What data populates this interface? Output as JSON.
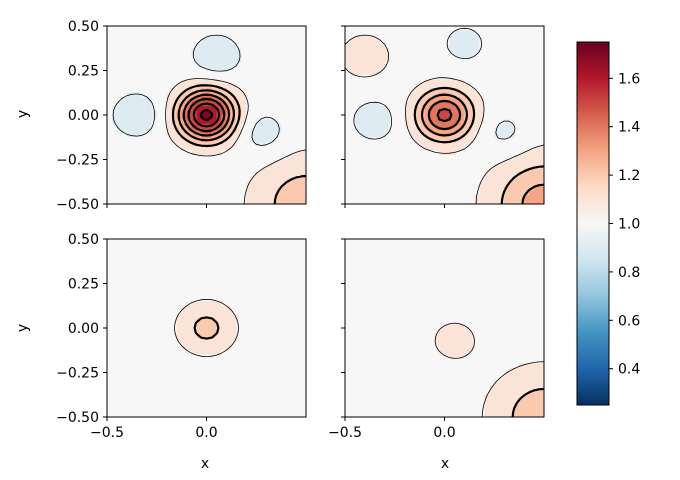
{
  "chart_data": {
    "type": "contour",
    "colormap": "RdBu_r",
    "colorbar": {
      "min": 0.25,
      "max": 1.75,
      "ticks": [
        0.4,
        0.6,
        0.8,
        1.0,
        1.2,
        1.4,
        1.6
      ],
      "tick_labels": [
        "0.4",
        "0.6",
        "0.8",
        "1.0",
        "1.2",
        "1.4",
        "1.6"
      ]
    },
    "contour_levels": [
      0.85,
      0.95,
      1.05,
      1.15,
      1.25,
      1.35,
      1.45,
      1.55,
      1.65
    ],
    "xlim": [
      -0.5,
      0.5
    ],
    "ylim": [
      -0.5,
      0.5
    ],
    "x_ticks": [
      -0.5,
      0.0
    ],
    "x_tick_labels": [
      "−0.5",
      "0.0"
    ],
    "y_ticks": [
      0.5,
      0.25,
      0.0,
      -0.25,
      -0.5
    ],
    "y_tick_labels": [
      "0.50",
      "0.25",
      "0.00",
      "−0.25",
      "−0.50"
    ],
    "xlabel": "x",
    "ylabel": "y",
    "panels": [
      {
        "position": "top-left",
        "peak": {
          "x": 0.0,
          "y": 0.0,
          "value": 1.68
        },
        "corner_value": 1.22,
        "features": [
          {
            "x": -0.35,
            "y": 0.0,
            "value": 0.88
          },
          {
            "x": 0.05,
            "y": 0.33,
            "value": 0.88
          },
          {
            "x": 0.28,
            "y": -0.1,
            "value": 0.9
          }
        ]
      },
      {
        "position": "top-right",
        "peak": {
          "x": 0.0,
          "y": 0.0,
          "value": 1.48
        },
        "corner_value": 1.3,
        "features": [
          {
            "x": -0.4,
            "y": 0.33,
            "value": 1.12
          },
          {
            "x": -0.35,
            "y": -0.03,
            "value": 0.9
          },
          {
            "x": 0.1,
            "y": 0.4,
            "value": 0.92
          },
          {
            "x": 0.3,
            "y": -0.1,
            "value": 0.92
          }
        ]
      },
      {
        "position": "bottom-left",
        "peak": {
          "x": 0.0,
          "y": 0.0,
          "value": 1.18
        },
        "corner_value": 0.98,
        "features": []
      },
      {
        "position": "bottom-right",
        "peak": {
          "x": 0.05,
          "y": -0.07,
          "value": 1.08
        },
        "corner_value": 1.22,
        "features": []
      }
    ]
  }
}
